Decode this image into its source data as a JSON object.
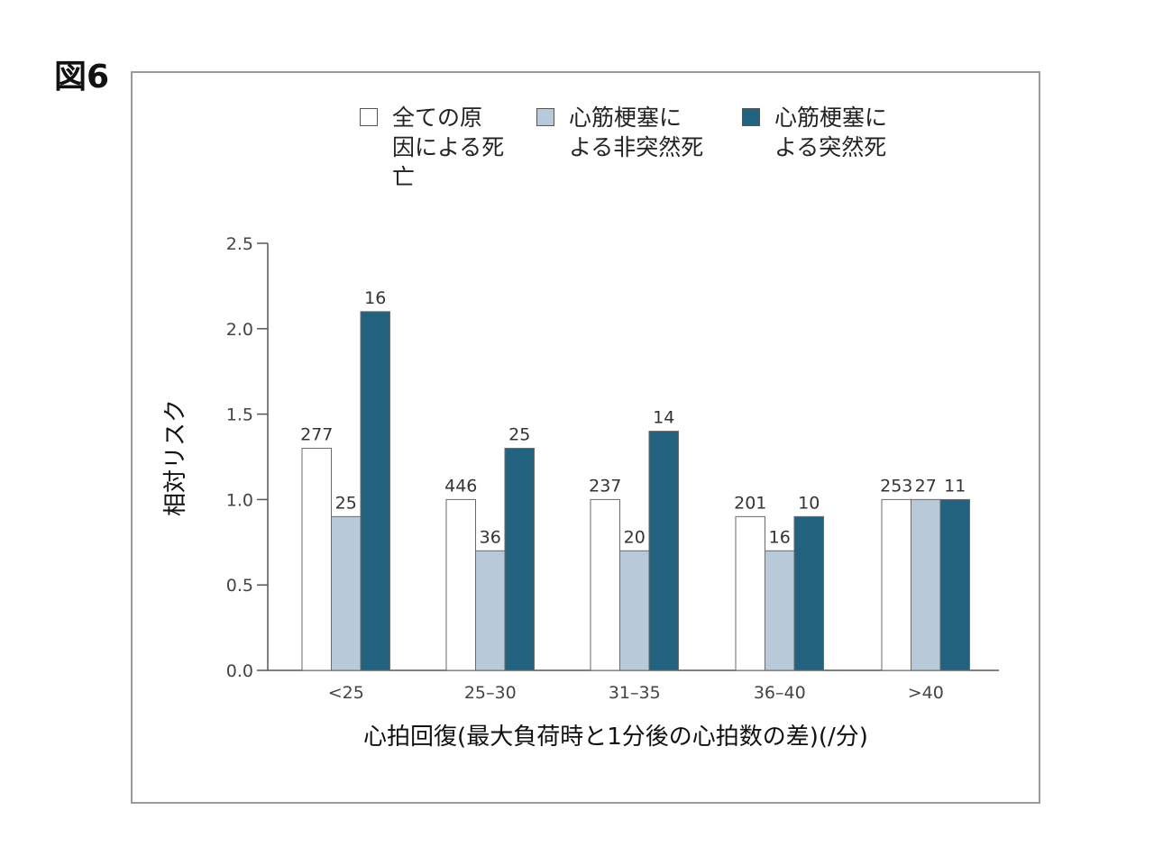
{
  "figure_label": "図6",
  "colors": {
    "all_cause": "#ffffff",
    "nonsudden": "#b8cad9",
    "sudden": "#23627e"
  },
  "chart_data": {
    "type": "bar",
    "title": "",
    "xlabel": "心拍回復(最大負荷時と1分後の心拍数の差)(/分)",
    "ylabel": "相対リスク",
    "ylim": [
      0,
      2.5
    ],
    "yticks": [
      "0.0",
      "0.5",
      "1.0",
      "1.5",
      "2.0",
      "2.5"
    ],
    "categories": [
      "<25",
      "25–30",
      "31–35",
      "36–40",
      ">40"
    ],
    "legend_position": "top",
    "series": [
      {
        "name": "全ての原\n因による死\n亡",
        "values": [
          1.3,
          1.0,
          1.0,
          0.9,
          1.0
        ],
        "labels": [
          "277",
          "446",
          "237",
          "201",
          "253"
        ]
      },
      {
        "name": "心筋梗塞に\nよる非突然死",
        "values": [
          0.9,
          0.7,
          0.7,
          0.7,
          1.0
        ],
        "labels": [
          "25",
          "36",
          "20",
          "16",
          "27"
        ]
      },
      {
        "name": "心筋梗塞に\nよる突然死",
        "values": [
          2.1,
          1.3,
          1.4,
          0.9,
          1.0
        ],
        "labels": [
          "16",
          "25",
          "14",
          "10",
          "11"
        ]
      }
    ]
  }
}
